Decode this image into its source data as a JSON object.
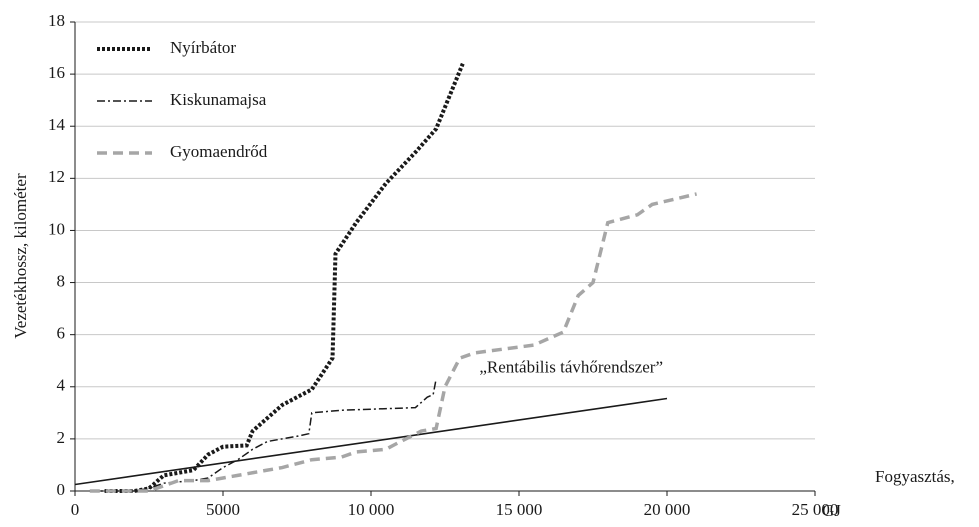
{
  "chart_data": {
    "type": "line",
    "ylabel": "Vezetékhossz, kilométer",
    "xlabel": [
      "Fogyasztás,",
      "GJ"
    ],
    "xlim": [
      0,
      25000
    ],
    "xticks": [
      0,
      5000,
      {
        "value": 10000,
        "label": "10 000"
      },
      {
        "value": 15000,
        "label": "15 000"
      },
      {
        "value": 20000,
        "label": "20 000"
      },
      {
        "value": 25000,
        "label": "25 000"
      }
    ],
    "ylim": [
      0,
      18
    ],
    "yticks": [
      0,
      2,
      4,
      6,
      8,
      10,
      12,
      14,
      16,
      18
    ],
    "grid": true,
    "legend": "top-left",
    "series": [
      {
        "name": "Nyírbátor",
        "color": "#1a1a1a",
        "dash": "dotted",
        "x": [
          1000,
          2000,
          2500,
          3000,
          4000,
          4500,
          5000,
          5800,
          6000,
          7000,
          8000,
          8700,
          8800,
          9500,
          10500,
          11500,
          12200,
          13100
        ],
        "values": [
          0,
          0,
          0.1,
          0.6,
          0.8,
          1.4,
          1.7,
          1.75,
          2.3,
          3.3,
          3.9,
          5.1,
          9.1,
          10.3,
          11.8,
          13.0,
          13.9,
          16.4
        ]
      },
      {
        "name": "Kiskunamajsa",
        "color": "#1a1a1a",
        "dash": "dashdot",
        "x": [
          500,
          2000,
          2500,
          3000,
          4000,
          4500,
          5000,
          5500,
          6000,
          6500,
          7500,
          7900,
          8000,
          9000,
          11500,
          11900,
          12100,
          12200
        ],
        "values": [
          0,
          0,
          0.1,
          0.3,
          0.4,
          0.5,
          0.9,
          1.2,
          1.6,
          1.9,
          2.1,
          2.2,
          3.0,
          3.1,
          3.2,
          3.6,
          3.7,
          4.3
        ]
      },
      {
        "name": "Gyomaendrőd",
        "color": "#a6a6a6",
        "dash": "dashed",
        "x": [
          500,
          2500,
          3000,
          3500,
          4500,
          5000,
          5500,
          6500,
          7000,
          8000,
          9000,
          9500,
          10500,
          11000,
          11700,
          12200,
          12500,
          13000,
          13500,
          15500,
          16500,
          17000,
          17500,
          18000,
          19000,
          19500,
          21000
        ],
        "values": [
          0,
          0,
          0.2,
          0.4,
          0.4,
          0.5,
          0.6,
          0.8,
          0.9,
          1.2,
          1.3,
          1.5,
          1.6,
          1.9,
          2.3,
          2.4,
          4.0,
          5.1,
          5.3,
          5.6,
          6.1,
          7.5,
          8.0,
          10.3,
          10.6,
          11.0,
          11.4
        ]
      }
    ],
    "reference_line": {
      "label": "„Rentábilis távhőrendszer”",
      "color": "#1a1a1a",
      "x": [
        0,
        20000
      ],
      "values": [
        0.25,
        3.55
      ]
    }
  }
}
